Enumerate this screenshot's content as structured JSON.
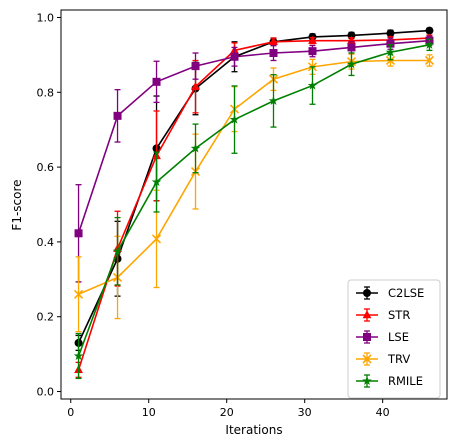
{
  "chart_data": {
    "type": "line",
    "title": "",
    "xlabel": "Iterations",
    "ylabel": "F1-score",
    "xlim": [
      -1.25,
      48.25
    ],
    "ylim": [
      -0.02,
      1.02
    ],
    "x_ticks": [
      0,
      10,
      20,
      30,
      40
    ],
    "y_ticks": [
      0.0,
      0.2,
      0.4,
      0.6,
      0.8,
      1.0
    ],
    "x_tick_labels": [
      "0",
      "10",
      "20",
      "30",
      "40"
    ],
    "y_tick_labels": [
      "0.0",
      "0.2",
      "0.4",
      "0.6",
      "0.8",
      "1.0"
    ],
    "grid": false,
    "legend_position": "lower-right",
    "error_bars": true,
    "x": [
      1,
      6,
      11,
      16,
      21,
      26,
      31,
      36,
      41,
      46
    ],
    "series": [
      {
        "name": "C2LSE",
        "color": "#000000",
        "marker": "circle",
        "values": [
          0.13,
          0.355,
          0.65,
          0.81,
          0.895,
          0.935,
          0.948,
          0.952,
          0.958,
          0.965
        ],
        "errors": [
          0.02,
          0.1,
          0.14,
          0.07,
          0.04,
          0.01,
          0.008,
          0.008,
          0.008,
          0.006
        ]
      },
      {
        "name": "STR",
        "color": "#ff0000",
        "marker": "triangle-up",
        "values": [
          0.058,
          0.382,
          0.63,
          0.815,
          0.912,
          0.935,
          0.938,
          0.938,
          0.94,
          0.945
        ],
        "errors": [
          0.02,
          0.1,
          0.12,
          0.07,
          0.02,
          0.01,
          0.008,
          0.008,
          0.008,
          0.008
        ]
      },
      {
        "name": "LSE",
        "color": "#800080",
        "marker": "square",
        "values": [
          0.423,
          0.737,
          0.828,
          0.87,
          0.895,
          0.905,
          0.91,
          0.92,
          0.93,
          0.938
        ],
        "errors": [
          0.13,
          0.07,
          0.055,
          0.035,
          0.025,
          0.02,
          0.015,
          0.015,
          0.015,
          0.012
        ]
      },
      {
        "name": "TRV",
        "color": "#ffa500",
        "marker": "x",
        "values": [
          0.26,
          0.305,
          0.408,
          0.588,
          0.755,
          0.835,
          0.868,
          0.882,
          0.885,
          0.885
        ],
        "errors": [
          0.1,
          0.11,
          0.13,
          0.1,
          0.06,
          0.03,
          0.02,
          0.02,
          0.015,
          0.015
        ]
      },
      {
        "name": "RMILE",
        "color": "#008000",
        "marker": "star",
        "values": [
          0.095,
          0.375,
          0.56,
          0.65,
          0.727,
          0.777,
          0.818,
          0.875,
          0.907,
          0.927
        ],
        "errors": [
          0.06,
          0.09,
          0.08,
          0.065,
          0.09,
          0.07,
          0.05,
          0.03,
          0.02,
          0.015
        ]
      }
    ]
  }
}
